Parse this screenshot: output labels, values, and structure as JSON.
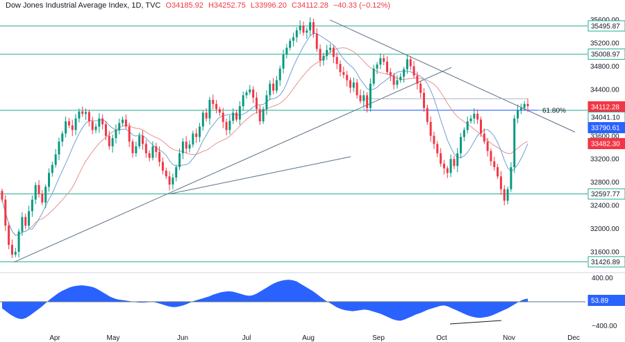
{
  "header": {
    "symbol": "Dow Jones Industrial Average Index, 1D, TVC",
    "open": "O34185.92",
    "high": "H34252.75",
    "low": "L33996.20",
    "close": "C34112.28",
    "change": "−40.33 (−0.12%)"
  },
  "colors": {
    "up": "#089981",
    "down": "#f23645",
    "level_line": "#22ab94",
    "trend_line": "#5b6f86",
    "ma_fast": "#6f9fd1",
    "ma_slow": "#e8908f",
    "osc_fill": "#2962ff",
    "tag_price": "#f23645",
    "tag_fast": "#2962ff",
    "tag_slow": "#f23645",
    "tag_osc": "#2962ff"
  },
  "chart_data": [
    {
      "type": "candlestick",
      "ylim": [
        31300,
        35680
      ],
      "price_ticks": [
        35600,
        35200,
        34800,
        34400,
        34000,
        33600,
        33200,
        32800,
        32400,
        32000,
        31600
      ],
      "x_ticks": [
        "Apr",
        "May",
        "Jun",
        "Jul",
        "Aug",
        "Sep",
        "Oct",
        "Nov",
        "Dec"
      ],
      "horizontal_levels": [
        35495.87,
        35008.97,
        34041.1,
        32597.77,
        31426.89
      ],
      "fib_label": "61.80%",
      "price_tags": [
        {
          "value": 34112.28,
          "label": "34112.28",
          "kind": "price"
        },
        {
          "value": 34041.1,
          "label": "34041.10",
          "kind": "level"
        },
        {
          "value": 33790.61,
          "label": "33790.61",
          "kind": "fast"
        },
        {
          "value": 33482.3,
          "label": "33482.30",
          "kind": "slow"
        }
      ],
      "level_tags": [
        {
          "value": 35495.87,
          "label": "35495.87"
        },
        {
          "value": 35008.97,
          "label": "35008.97"
        },
        {
          "value": 32597.77,
          "label": "32597.77"
        },
        {
          "value": 31426.89,
          "label": "31426.89"
        }
      ],
      "closes": [
        32500,
        32050,
        31720,
        31550,
        31600,
        31950,
        32200,
        32050,
        32300,
        32500,
        32750,
        32600,
        32450,
        32720,
        32960,
        33100,
        33280,
        33500,
        33640,
        33850,
        33780,
        33700,
        33900,
        34020,
        33980,
        34010,
        33850,
        33700,
        33760,
        33900,
        33800,
        33600,
        33420,
        33560,
        33700,
        33820,
        33880,
        33760,
        33500,
        33300,
        33420,
        33600,
        33460,
        33300,
        33220,
        33420,
        33320,
        33150,
        33000,
        32900,
        32760,
        32880,
        33060,
        33300,
        33500,
        33380,
        33450,
        33640,
        33580,
        33760,
        34000,
        33900,
        34220,
        34150,
        34060,
        34000,
        33840,
        33700,
        33860,
        34000,
        33880,
        34110,
        34300,
        34350,
        34400,
        34260,
        34060,
        33850,
        34060,
        34300,
        34500,
        34380,
        34560,
        34760,
        35000,
        35120,
        35240,
        35300,
        35420,
        35500,
        35380,
        35420,
        35560,
        35360,
        35100,
        34900,
        34980,
        35080,
        35120,
        34960,
        34840,
        34700,
        34650,
        34560,
        34430,
        34520,
        34300,
        34200,
        34300,
        34080,
        34500,
        34760,
        34830,
        34940,
        34880,
        34700,
        34640,
        34480,
        34560,
        34620,
        34750,
        34920,
        34800,
        34640,
        34500,
        34340,
        34080,
        33840,
        33600,
        33460,
        33300,
        33120,
        33040,
        32960,
        33200,
        33080,
        33300,
        33580,
        33700,
        33850,
        33900,
        33980,
        33880,
        33640,
        33500,
        33340,
        33160,
        33060,
        32900,
        32680,
        32480,
        32680,
        33060,
        33900,
        34040,
        34080,
        34150,
        34112
      ]
    },
    {
      "type": "area",
      "ylim": [
        -430,
        430
      ],
      "y_ticks": [
        400,
        -400
      ],
      "y_tick_labels": [
        "400.00",
        "−400.00"
      ],
      "current": 53.89,
      "current_label": "53.89",
      "values": [
        -110,
        -160,
        -210,
        -250,
        -280,
        -290,
        -270,
        -230,
        -180,
        -130,
        -80,
        -20,
        40,
        90,
        140,
        180,
        210,
        240,
        260,
        270,
        275,
        268,
        258,
        240,
        210,
        170,
        130,
        90,
        60,
        40,
        30,
        22,
        12,
        0,
        -10,
        -15,
        -12,
        -6,
        -4,
        -20,
        -40,
        -60,
        -80,
        -90,
        -85,
        -70,
        -50,
        -20,
        10,
        30,
        50,
        70,
        90,
        120,
        140,
        160,
        170,
        175,
        168,
        150,
        130,
        110,
        100,
        110,
        140,
        180,
        220,
        260,
        300,
        330,
        350,
        365,
        370,
        360,
        340,
        300,
        260,
        220,
        180,
        130,
        80,
        30,
        -10,
        -50,
        -90,
        -120,
        -140,
        -150,
        -158,
        -150,
        -140,
        -130,
        -140,
        -160,
        -180,
        -200,
        -230,
        -260,
        -290,
        -310,
        -318,
        -300,
        -270,
        -240,
        -210,
        -190,
        -160,
        -130,
        -110,
        -90,
        -70,
        -60,
        -80,
        -110,
        -140,
        -170,
        -200,
        -230,
        -250,
        -265,
        -270,
        -262,
        -250,
        -230,
        -200,
        -170,
        -140,
        -110,
        -70,
        -30,
        10,
        40,
        54
      ]
    }
  ]
}
